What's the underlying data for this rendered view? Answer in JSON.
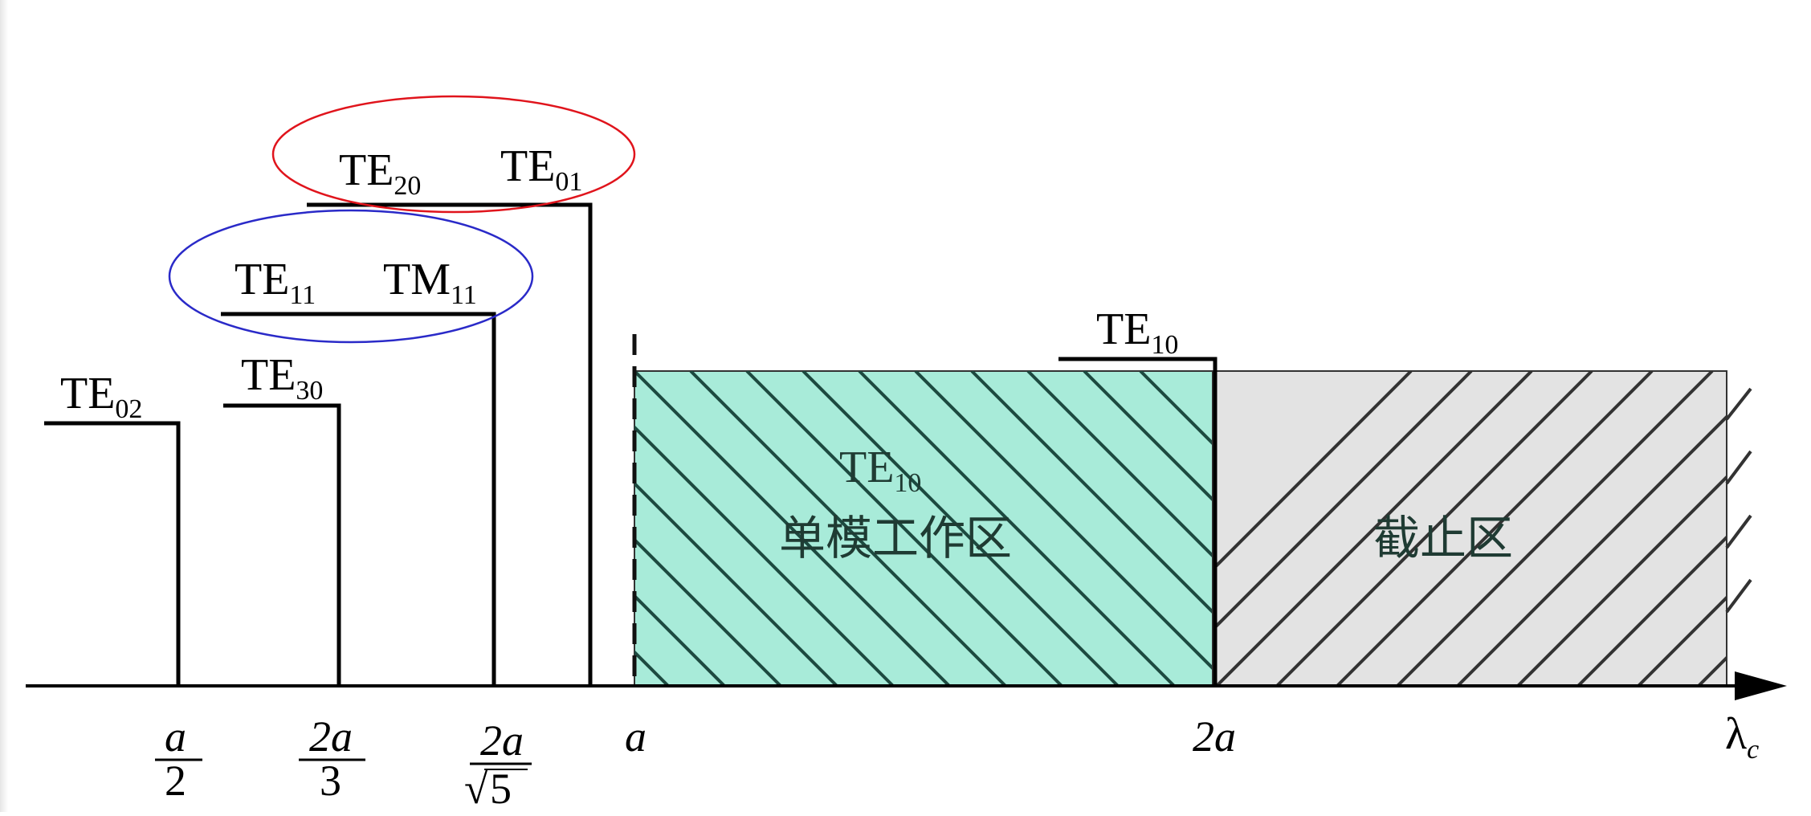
{
  "diagram": {
    "mode_labels": [
      {
        "id": "te02",
        "base": "TE",
        "sub": "02"
      },
      {
        "id": "te30",
        "base": "TE",
        "sub": "30"
      },
      {
        "id": "te11",
        "base": "TE",
        "sub": "11"
      },
      {
        "id": "tm11",
        "base": "TM",
        "sub": "11"
      },
      {
        "id": "te20",
        "base": "TE",
        "sub": "20"
      },
      {
        "id": "te01",
        "base": "TE",
        "sub": "01"
      },
      {
        "id": "te10",
        "base": "TE",
        "sub": "10"
      }
    ],
    "axis": {
      "label_base": "λ",
      "label_sub": "c",
      "ticks": {
        "a_over_2": {
          "num": "a",
          "den": "2"
        },
        "two_a_over_3": {
          "num": "2a",
          "den": "3"
        },
        "two_a_over_sqrt5": {
          "num": "2a",
          "den": "5",
          "radical": "√"
        },
        "a": "a",
        "two_a": "2a"
      }
    },
    "regions": {
      "single_mode": {
        "mode_base": "TE",
        "mode_sub": "10",
        "label": "单模工作区",
        "color": "#a8ebd9"
      },
      "cutoff": {
        "label": "截止区",
        "color": "#e3e3e3"
      }
    },
    "groupings": {
      "red_ellipse_color": "#e0141c",
      "blue_ellipse_color": "#2a2ac8"
    }
  }
}
